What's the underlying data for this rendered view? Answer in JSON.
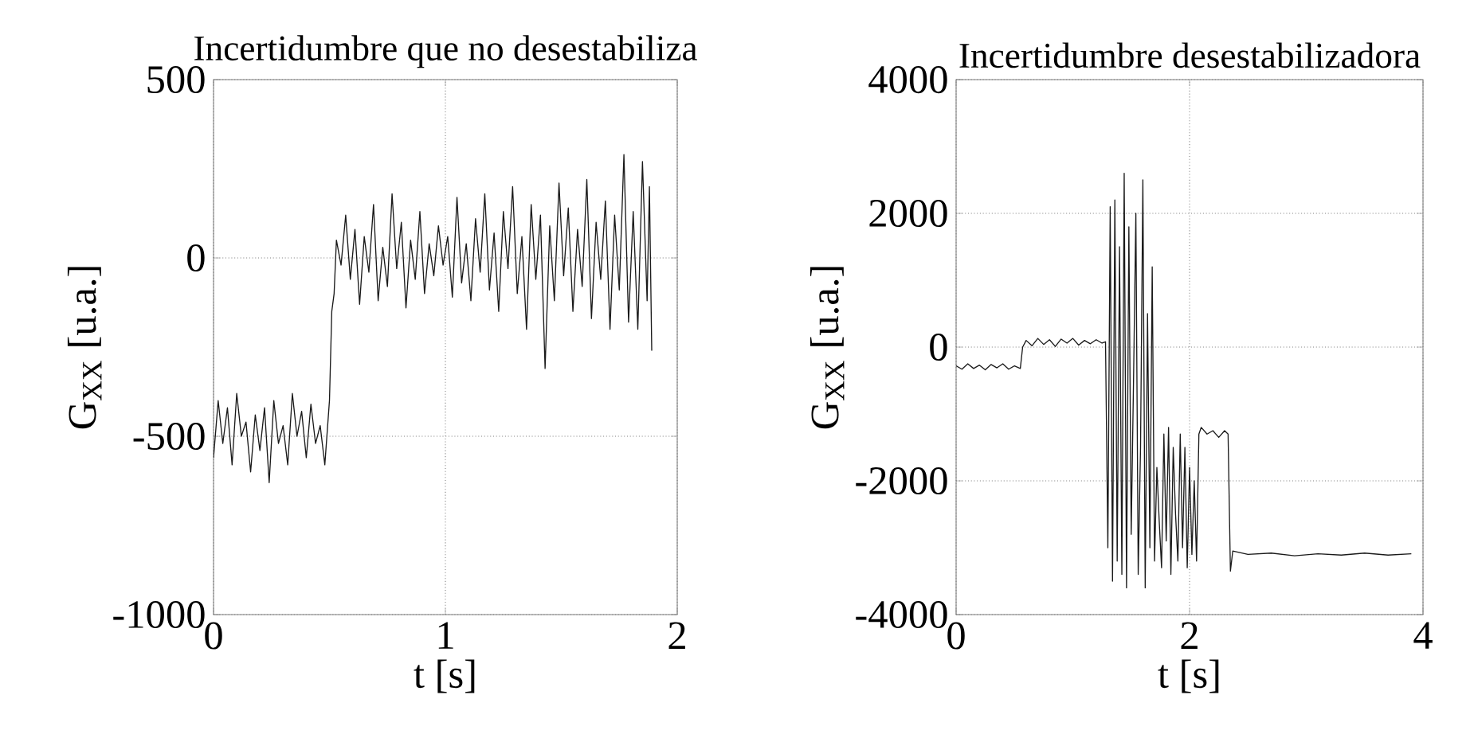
{
  "chart_data": [
    {
      "type": "line",
      "title": "Incertidumbre que no desestabiliza",
      "xlabel": "t [s]",
      "ylabel": "G$_{XX}$ [u.a.]",
      "xlim": [
        0,
        2
      ],
      "ylim": [
        -1000,
        500
      ],
      "xticks": [
        0,
        1,
        2
      ],
      "yticks": [
        -1000,
        -500,
        0,
        500
      ],
      "grid": true,
      "series": [
        {
          "color": "#1a1a1a",
          "x": [
            0,
            0.02,
            0.04,
            0.06,
            0.08,
            0.1,
            0.12,
            0.14,
            0.16,
            0.18,
            0.2,
            0.22,
            0.24,
            0.26,
            0.28,
            0.3,
            0.32,
            0.34,
            0.36,
            0.38,
            0.4,
            0.42,
            0.44,
            0.46,
            0.48,
            0.5,
            0.51,
            0.52,
            0.53,
            0.55,
            0.57,
            0.59,
            0.61,
            0.63,
            0.65,
            0.67,
            0.69,
            0.71,
            0.73,
            0.75,
            0.77,
            0.79,
            0.81,
            0.83,
            0.85,
            0.87,
            0.89,
            0.91,
            0.93,
            0.95,
            0.97,
            0.99,
            1.01,
            1.03,
            1.05,
            1.07,
            1.09,
            1.11,
            1.13,
            1.15,
            1.17,
            1.19,
            1.21,
            1.23,
            1.25,
            1.27,
            1.29,
            1.31,
            1.33,
            1.35,
            1.37,
            1.39,
            1.41,
            1.43,
            1.45,
            1.47,
            1.49,
            1.51,
            1.53,
            1.55,
            1.57,
            1.59,
            1.61,
            1.63,
            1.65,
            1.67,
            1.69,
            1.71,
            1.73,
            1.75,
            1.77,
            1.79,
            1.81,
            1.83,
            1.85,
            1.87,
            1.88,
            1.89
          ],
          "values": [
            -560,
            -400,
            -520,
            -420,
            -580,
            -380,
            -500,
            -460,
            -600,
            -440,
            -540,
            -420,
            -630,
            -400,
            -520,
            -470,
            -580,
            -380,
            -500,
            -430,
            -560,
            -410,
            -520,
            -470,
            -580,
            -400,
            -150,
            -100,
            50,
            -20,
            120,
            -60,
            80,
            -130,
            60,
            -40,
            150,
            -120,
            30,
            -80,
            180,
            -30,
            100,
            -140,
            50,
            -60,
            130,
            -100,
            40,
            -50,
            90,
            -20,
            60,
            -110,
            170,
            -70,
            40,
            -120,
            110,
            -40,
            180,
            -90,
            70,
            -150,
            130,
            -30,
            200,
            -100,
            60,
            -200,
            150,
            -60,
            120,
            -310,
            90,
            -120,
            210,
            -50,
            140,
            -150,
            80,
            -80,
            220,
            -170,
            100,
            -60,
            160,
            -200,
            120,
            -90,
            290,
            -180,
            130,
            -200,
            270,
            -120,
            200,
            -260
          ]
        }
      ]
    },
    {
      "type": "line",
      "title": "Incertidumbre desestabilizadora",
      "xlabel": "t [s]",
      "ylabel": "G$_{XX}$ [u.a.]",
      "xlim": [
        0,
        4
      ],
      "ylim": [
        -4000,
        4000
      ],
      "xticks": [
        0,
        2,
        4
      ],
      "yticks": [
        -4000,
        -2000,
        0,
        2000,
        4000
      ],
      "grid": true,
      "series": [
        {
          "color": "#1a1a1a",
          "x": [
            0,
            0.05,
            0.1,
            0.15,
            0.2,
            0.25,
            0.3,
            0.35,
            0.4,
            0.45,
            0.5,
            0.55,
            0.57,
            0.6,
            0.65,
            0.7,
            0.75,
            0.8,
            0.85,
            0.9,
            0.95,
            1.0,
            1.05,
            1.1,
            1.15,
            1.2,
            1.25,
            1.28,
            1.3,
            1.32,
            1.34,
            1.36,
            1.38,
            1.4,
            1.42,
            1.44,
            1.46,
            1.48,
            1.5,
            1.52,
            1.54,
            1.56,
            1.58,
            1.6,
            1.62,
            1.64,
            1.66,
            1.68,
            1.7,
            1.72,
            1.74,
            1.76,
            1.78,
            1.8,
            1.82,
            1.84,
            1.86,
            1.88,
            1.9,
            1.92,
            1.94,
            1.96,
            1.98,
            2.0,
            2.02,
            2.04,
            2.06,
            2.08,
            2.1,
            2.15,
            2.2,
            2.25,
            2.3,
            2.33,
            2.35,
            2.37,
            2.5,
            2.7,
            2.9,
            3.1,
            3.3,
            3.5,
            3.7,
            3.9
          ],
          "values": [
            -280,
            -330,
            -250,
            -320,
            -270,
            -340,
            -260,
            -310,
            -250,
            -330,
            -280,
            -320,
            0,
            100,
            20,
            130,
            40,
            110,
            10,
            120,
            60,
            130,
            30,
            100,
            50,
            110,
            60,
            80,
            -3000,
            2100,
            -3500,
            2200,
            -3200,
            1500,
            -3400,
            2600,
            -3600,
            1800,
            -2800,
            -500,
            2000,
            -3400,
            -1500,
            2500,
            -3600,
            500,
            -3000,
            1200,
            -3200,
            -1800,
            -2600,
            -3300,
            -1300,
            -2900,
            -1200,
            -3400,
            -1500,
            -2500,
            -3200,
            -1300,
            -3000,
            -1500,
            -3300,
            -1800,
            -3100,
            -2000,
            -3200,
            -1300,
            -1200,
            -1300,
            -1250,
            -1350,
            -1250,
            -1300,
            -3350,
            -3050,
            -3100,
            -3080,
            -3120,
            -3090,
            -3110,
            -3080,
            -3110,
            -3090
          ]
        }
      ]
    }
  ]
}
